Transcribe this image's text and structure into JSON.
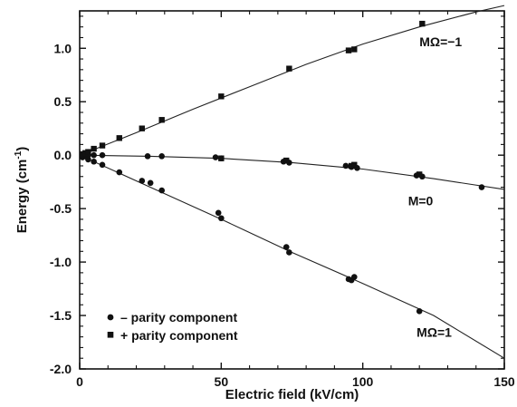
{
  "chart_data": {
    "type": "scatter",
    "xlabel": "Electric field (kV/cm)",
    "ylabel_main": "Energy (cm",
    "ylabel_sup": "-1",
    "ylabel_close": ")",
    "xlim": [
      0,
      150
    ],
    "ylim": [
      -2.0,
      1.35
    ],
    "xticks": [
      0,
      50,
      100,
      150
    ],
    "xtick_labels": [
      "0",
      "50",
      "100",
      "150"
    ],
    "yticks": [
      -2.0,
      -1.5,
      -1.0,
      -0.5,
      0.0,
      0.5,
      1.0
    ],
    "ytick_labels": [
      "-2.0",
      "-1.5",
      "-1.0",
      "-0.5",
      "0.0",
      "0.5",
      "1.0"
    ],
    "grid": false,
    "legend_position": "bottom-left",
    "legend": [
      {
        "marker": "circle",
        "label": "– parity component"
      },
      {
        "marker": "square",
        "label": "+ parity component"
      }
    ],
    "annotations": [
      {
        "text": "MΩ=−1",
        "x": 120,
        "y": 1.02
      },
      {
        "text": "M=0",
        "x": 116,
        "y": -0.47
      },
      {
        "text": "MΩ=1",
        "x": 119,
        "y": -1.7
      }
    ],
    "curves": [
      {
        "x": [
          0,
          20,
          40,
          60,
          80,
          100,
          120,
          140,
          150
        ],
        "y": [
          0,
          0.21,
          0.43,
          0.64,
          0.85,
          1.04,
          1.2,
          1.34,
          1.4
        ]
      },
      {
        "x": [
          0,
          25,
          50,
          75,
          100,
          125,
          150
        ],
        "y": [
          0,
          -0.01,
          -0.03,
          -0.07,
          -0.13,
          -0.22,
          -0.32
        ]
      },
      {
        "x": [
          0,
          25,
          50,
          75,
          100,
          125,
          150
        ],
        "y": [
          0,
          -0.3,
          -0.6,
          -0.91,
          -1.2,
          -1.5,
          -1.9
        ]
      }
    ],
    "series": [
      {
        "marker": "circle",
        "x": [
          1,
          2,
          3,
          5,
          8,
          14,
          22,
          25,
          29,
          49,
          50,
          73,
          74,
          95,
          96,
          97,
          120,
          1,
          3,
          5,
          8,
          24,
          29,
          48,
          50,
          72,
          74,
          94,
          96,
          98,
          119,
          121,
          142
        ],
        "y": [
          -0.02,
          -0.01,
          -0.04,
          -0.06,
          -0.09,
          -0.16,
          -0.24,
          -0.26,
          -0.33,
          -0.54,
          -0.59,
          -0.86,
          -0.91,
          -1.16,
          -1.17,
          -1.14,
          -1.46,
          0.0,
          0.0,
          0.0,
          0.0,
          -0.01,
          -0.01,
          -0.02,
          -0.03,
          -0.06,
          -0.07,
          -0.1,
          -0.11,
          -0.12,
          -0.19,
          -0.2,
          -0.3
        ]
      },
      {
        "marker": "square",
        "x": [
          1,
          2,
          3,
          5,
          8,
          14,
          22,
          29,
          50,
          74,
          95,
          97,
          121,
          50,
          73,
          96,
          97,
          120
        ],
        "y": [
          0.01,
          0.02,
          0.03,
          0.06,
          0.09,
          0.16,
          0.25,
          0.33,
          0.55,
          0.81,
          0.98,
          0.99,
          1.23,
          -0.03,
          -0.05,
          -0.1,
          -0.09,
          -0.18
        ]
      }
    ]
  }
}
